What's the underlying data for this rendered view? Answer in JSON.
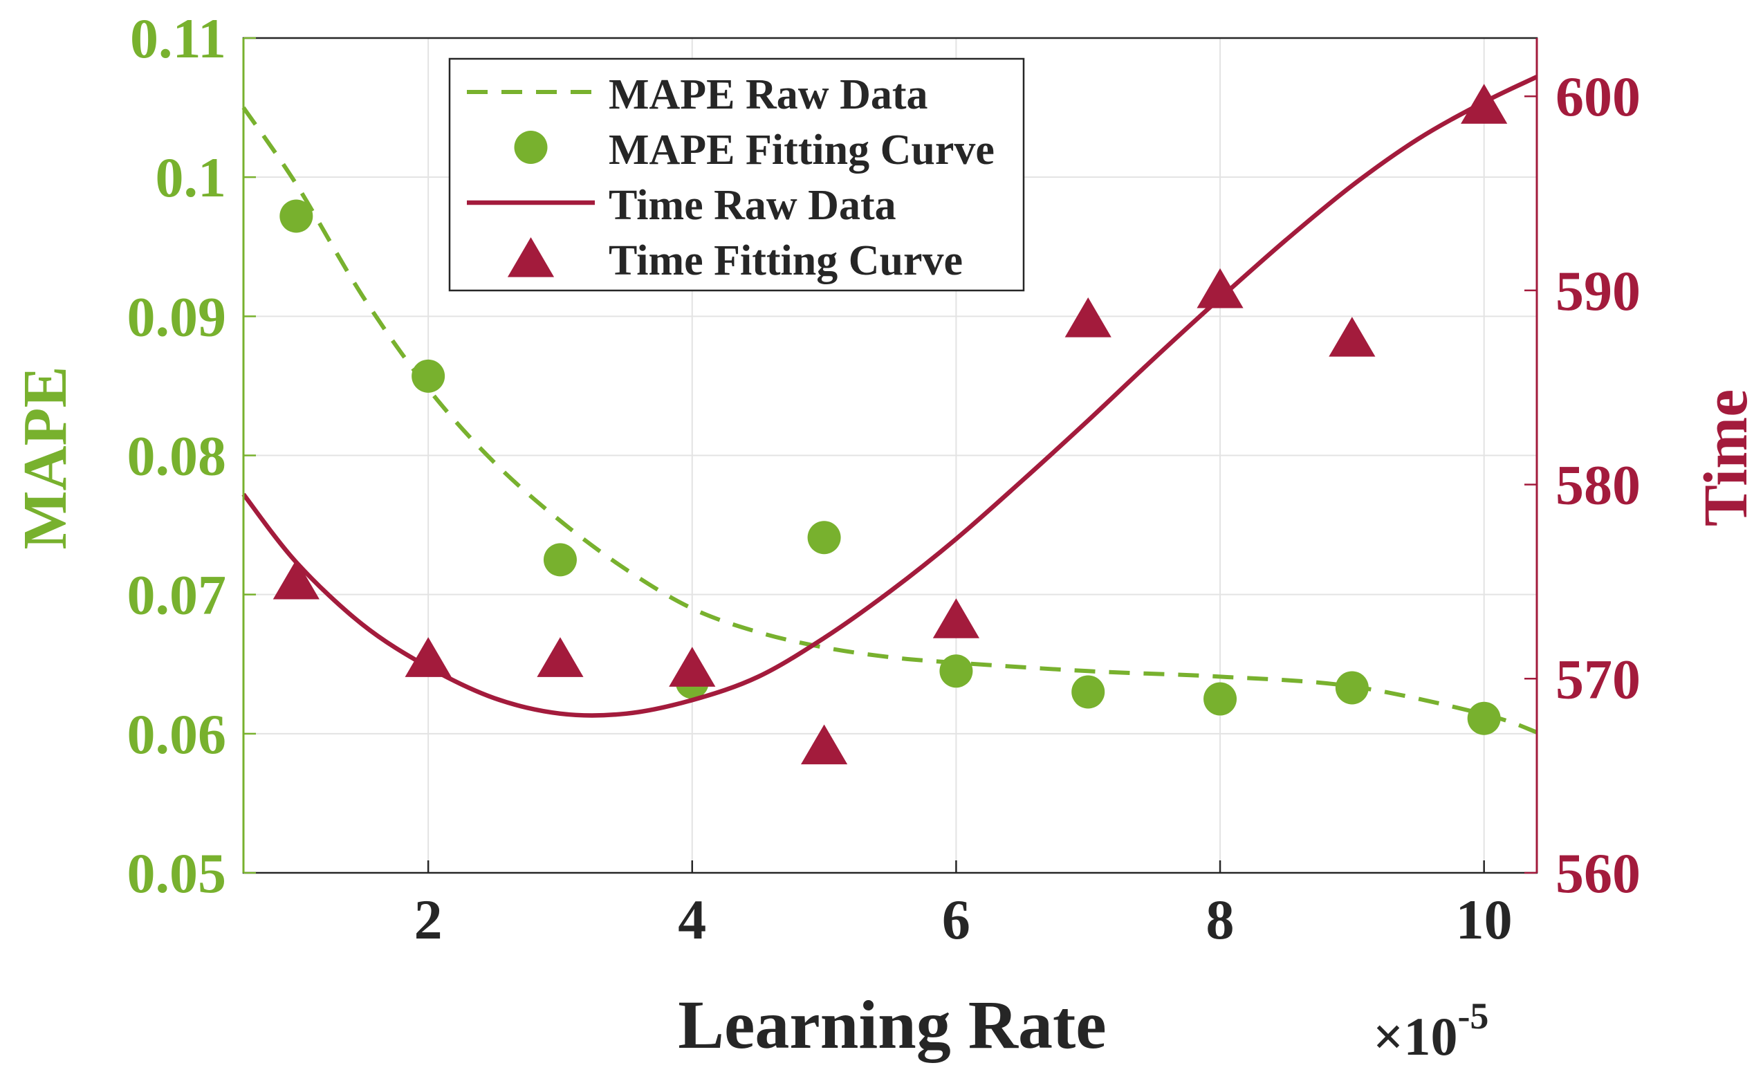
{
  "chart_data": {
    "type": "line",
    "x_label": "Learning Rate",
    "x_multiplier": "×10",
    "x_exponent": "-5",
    "x_ticks": [
      2,
      4,
      6,
      8,
      10
    ],
    "x_range": [
      0.6,
      10.4
    ],
    "y_left": {
      "label": "MAPE",
      "range": [
        0.05,
        0.11
      ],
      "ticks": [
        "0.05",
        "0.06",
        "0.07",
        "0.08",
        "0.09",
        "0.1",
        "0.11"
      ],
      "color": "#78b12e"
    },
    "y_right": {
      "label": "Time",
      "range": [
        560,
        603
      ],
      "ticks": [
        "560",
        "570",
        "580",
        "590",
        "600"
      ],
      "color": "#a31b3c"
    },
    "grid": true,
    "legend_position": "top-left",
    "legend": [
      "MAPE Raw Data",
      "MAPE Fitting Curve",
      "Time Raw Data",
      "Time Fitting Curve"
    ],
    "series": [
      {
        "name": "MAPE Raw Data",
        "style": "dashed-line",
        "axis": "left",
        "color": "#78b12e",
        "points": [
          [
            0.6,
            0.105
          ],
          [
            1,
            0.0995
          ],
          [
            1.5,
            0.0915
          ],
          [
            2,
            0.0848
          ],
          [
            2.5,
            0.0795
          ],
          [
            3,
            0.0753
          ],
          [
            3.5,
            0.0718
          ],
          [
            4,
            0.069
          ],
          [
            4.5,
            0.0673
          ],
          [
            5,
            0.0662
          ],
          [
            5.5,
            0.0655
          ],
          [
            6,
            0.0651
          ],
          [
            7,
            0.0645
          ],
          [
            8,
            0.0641
          ],
          [
            9,
            0.0634
          ],
          [
            10,
            0.0614
          ],
          [
            10.4,
            0.0601
          ]
        ]
      },
      {
        "name": "MAPE Fitting Curve",
        "style": "circle-markers",
        "axis": "left",
        "color": "#78b12e",
        "x": [
          1,
          2,
          3,
          4,
          5,
          6,
          7,
          8,
          9,
          10
        ],
        "values": [
          0.0972,
          0.0857,
          0.0725,
          0.0637,
          0.0741,
          0.0645,
          0.063,
          0.0625,
          0.0633,
          0.0611
        ]
      },
      {
        "name": "Time Raw Data",
        "style": "solid-line",
        "axis": "right",
        "color": "#a31b3c",
        "points": [
          [
            0.6,
            579.5
          ],
          [
            1,
            576.0
          ],
          [
            1.5,
            572.8
          ],
          [
            2,
            570.6
          ],
          [
            2.5,
            569.0
          ],
          [
            3,
            568.2
          ],
          [
            3.5,
            568.2
          ],
          [
            4,
            568.9
          ],
          [
            4.5,
            570.1
          ],
          [
            5,
            572.1
          ],
          [
            5.5,
            574.5
          ],
          [
            6,
            577.2
          ],
          [
            6.5,
            580.2
          ],
          [
            7,
            583.3
          ],
          [
            7.5,
            586.5
          ],
          [
            8,
            589.6
          ],
          [
            8.5,
            592.6
          ],
          [
            9,
            595.4
          ],
          [
            9.5,
            597.8
          ],
          [
            10,
            599.7
          ],
          [
            10.4,
            601.0
          ]
        ]
      },
      {
        "name": "Time Fitting Curve",
        "style": "triangle-markers",
        "axis": "right",
        "color": "#a31b3c",
        "x": [
          1,
          2,
          3,
          4,
          5,
          6,
          7,
          8,
          9,
          10
        ],
        "values": [
          575,
          571,
          571,
          570.5,
          566.5,
          573,
          588.5,
          590,
          587.5,
          599.5
        ]
      }
    ]
  }
}
